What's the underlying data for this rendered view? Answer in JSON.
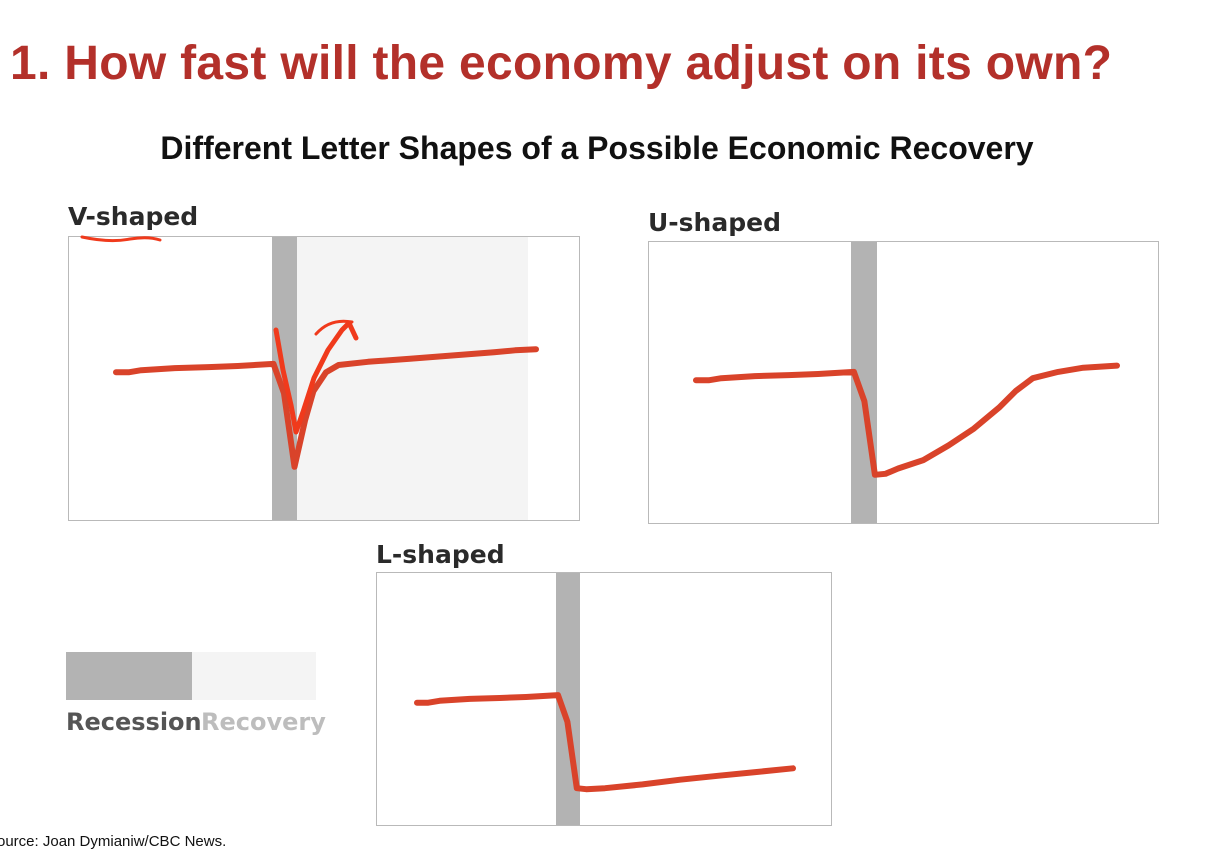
{
  "slide": {
    "title": "1. How fast will the economy adjust on its own?",
    "subtitle": "Different Letter Shapes of a Possible Economic Recovery",
    "source": "ource: Joan Dymianiw/CBC News."
  },
  "legend": {
    "recession_label": "Recession",
    "recovery_label": "Recovery",
    "recession_color": "#b3b3b3",
    "recovery_color": "#f4f4f4",
    "recession_text_color": "#555555",
    "recovery_text_color": "#bdbdbd"
  },
  "line_color": "#d9432a",
  "annotation_color": "#f03a1c",
  "chart_data": [
    {
      "type": "line",
      "title": "V-shaped",
      "recession_shaded": true,
      "recovery_shaded": true,
      "series": [
        {
          "x": [
            0,
            3,
            6,
            14,
            22,
            29,
            37.5,
            40,
            42.5,
            45,
            47,
            50,
            53,
            60,
            70,
            80,
            90,
            95,
            100
          ],
          "values": [
            57,
            57,
            58,
            59,
            59.5,
            60,
            61,
            47,
            12,
            34,
            48,
            57,
            60.5,
            62,
            63.5,
            65,
            66.5,
            67.5,
            68
          ]
        }
      ]
    },
    {
      "type": "line",
      "title": "U-shaped",
      "recession_shaded": true,
      "recovery_shaded": false,
      "series": [
        {
          "x": [
            0,
            3,
            6,
            14,
            22,
            29,
            37.5,
            40,
            42.5,
            45,
            48,
            54,
            60,
            66,
            72,
            76,
            80,
            86,
            92,
            100
          ],
          "values": [
            57,
            57,
            58,
            59,
            59.5,
            60,
            61,
            47,
            12,
            12.5,
            15,
            19,
            26,
            34,
            44,
            52,
            58,
            61,
            63,
            64
          ]
        }
      ]
    },
    {
      "type": "line",
      "title": "L-shaped",
      "recession_shaded": true,
      "recovery_shaded": false,
      "series": [
        {
          "x": [
            0,
            3,
            6,
            14,
            22,
            29,
            37.5,
            40,
            42.5,
            45,
            50,
            60,
            70,
            80,
            90,
            100
          ],
          "values": [
            57,
            57,
            58,
            59,
            59.5,
            60,
            61,
            47,
            12,
            11.5,
            12,
            14,
            16.5,
            18.5,
            20.5,
            22.5
          ]
        }
      ]
    }
  ]
}
